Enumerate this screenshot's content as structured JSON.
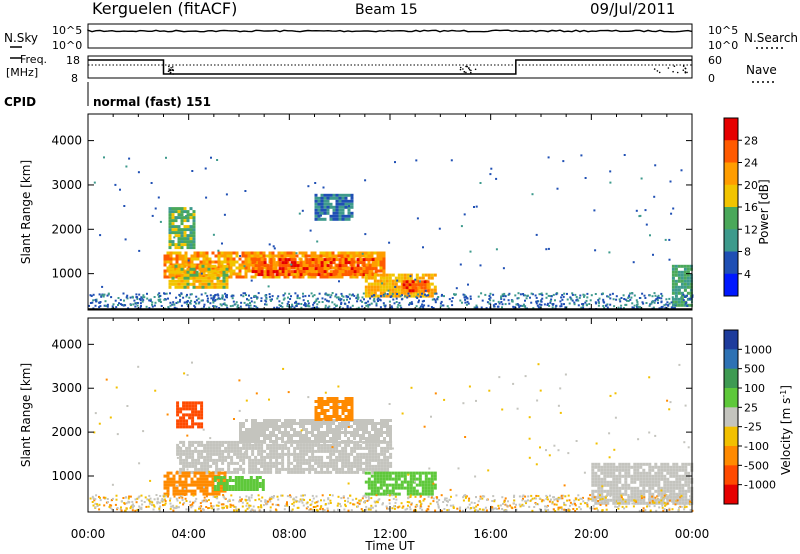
{
  "header": {
    "station": "Kerguelen (fitACF)",
    "beam": "Beam 15",
    "date": "09/Jul/2011"
  },
  "left_labels": {
    "nsky": "N.Sky",
    "freq_line1": "Freq.",
    "freq_line2": "[MHz]",
    "cpid": "CPID"
  },
  "right_labels": {
    "nsearch": "N.Search",
    "nave": "Nave"
  },
  "nsky_ticks": [
    "10^5",
    "10^0"
  ],
  "nsearch_ticks": [
    "10^5",
    "10^0"
  ],
  "freq_ticks": [
    "18",
    "8"
  ],
  "nave_ticks": [
    "60",
    "0"
  ],
  "cpid_text": "normal (fast) 151",
  "y_axis": {
    "label": "Slant Range [km]",
    "ticks": [
      "4000",
      "3000",
      "2000",
      "1000"
    ]
  },
  "x_axis": {
    "label": "Time UT",
    "ticks": [
      "00:00",
      "04:00",
      "08:00",
      "12:00",
      "16:00",
      "20:00",
      "00:00"
    ]
  },
  "power_scale": {
    "label": "Power [dB]",
    "ticks": [
      "28",
      "24",
      "20",
      "16",
      "12",
      "8",
      "4"
    ],
    "colors": [
      "#e60000",
      "#ff5a00",
      "#ff9d00",
      "#f2c400",
      "#4aa85a",
      "#3d9a8c",
      "#1f4fb4",
      "#0018ff"
    ]
  },
  "velocity_scale": {
    "label": "Velocity [m s",
    "label_sup": "-1",
    "label_end": "]",
    "ticks": [
      "1000",
      "500",
      "100",
      "25",
      "-25",
      "-100",
      "-500",
      "-1000"
    ],
    "colors": [
      "#1e3c9c",
      "#2e72b4",
      "#3e9a52",
      "#5ec83a",
      "#c4c4be",
      "#f2c000",
      "#ff8a00",
      "#ff4a00",
      "#e60000"
    ]
  },
  "chart_data": {
    "type": "heatmap",
    "title": "Kerguelen (fitACF) Beam 15 09/Jul/2011",
    "xlabel": "Time UT",
    "ylabel": "Slant Range [km]",
    "xlim_hours": [
      0,
      24
    ],
    "ylim_km": [
      180,
      4600
    ],
    "panels": [
      {
        "name": "Power",
        "units": "dB",
        "colorbar_range": [
          0,
          32
        ],
        "regions": [
          {
            "t0": 3.0,
            "t1": 11.8,
            "r0": 900,
            "r1": 1500,
            "value": 24
          },
          {
            "t0": 6.5,
            "t1": 11.5,
            "r0": 1000,
            "r1": 1350,
            "value": 28
          },
          {
            "t0": 3.2,
            "t1": 5.5,
            "r0": 700,
            "r1": 1200,
            "value": 20
          },
          {
            "t0": 3.2,
            "t1": 4.2,
            "r0": 1600,
            "r1": 2500,
            "value": 16
          },
          {
            "t0": 11.0,
            "t1": 13.8,
            "r0": 500,
            "r1": 1000,
            "value": 22
          },
          {
            "t0": 12.5,
            "t1": 13.5,
            "r0": 600,
            "r1": 850,
            "value": 28
          },
          {
            "t0": 9.0,
            "t1": 10.5,
            "r0": 2200,
            "r1": 2800,
            "value": 10
          },
          {
            "t0": 23.2,
            "t1": 24.0,
            "r0": 300,
            "r1": 1200,
            "value": 14
          }
        ]
      },
      {
        "name": "Velocity",
        "units": "m s^-1",
        "colorbar_range": [
          -1000,
          1000
        ],
        "regions": [
          {
            "t0": 3.5,
            "t1": 12.0,
            "r0": 1100,
            "r1": 1800,
            "value": 0
          },
          {
            "t0": 6.0,
            "t1": 12.0,
            "r0": 1800,
            "r1": 2300,
            "value": 0
          },
          {
            "t0": 3.0,
            "t1": 5.5,
            "r0": 600,
            "r1": 1100,
            "value": -100
          },
          {
            "t0": 5.0,
            "t1": 7.0,
            "r0": 700,
            "r1": 1000,
            "value": 100
          },
          {
            "t0": 11.0,
            "t1": 13.8,
            "r0": 600,
            "r1": 1100,
            "value": 100
          },
          {
            "t0": 3.5,
            "t1": 4.5,
            "r0": 2100,
            "r1": 2700,
            "value": -500
          },
          {
            "t0": 9.0,
            "t1": 10.5,
            "r0": 2300,
            "r1": 2800,
            "value": -100
          },
          {
            "t0": 20.0,
            "t1": 24.0,
            "r0": 400,
            "r1": 1300,
            "value": 0
          }
        ]
      }
    ]
  }
}
